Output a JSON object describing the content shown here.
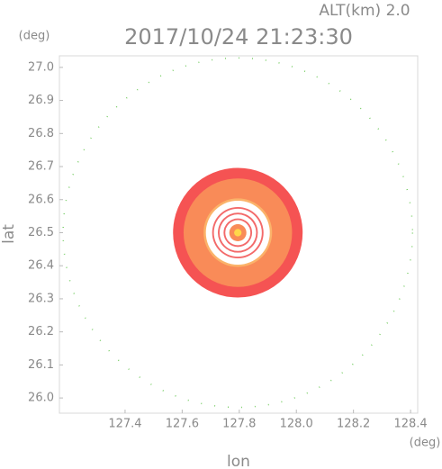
{
  "chart_data": {
    "type": "ppi",
    "title": "2017/10/24 21:23:30",
    "subtitle": "ALT(km) 2.0",
    "x_unit": "(deg)",
    "y_unit": "(deg)",
    "xlabel": "lon",
    "ylabel": "lat",
    "xlim": [
      127.17,
      128.425
    ],
    "ylim": [
      25.954,
      27.035
    ],
    "xticks": [
      127.4,
      127.6,
      127.8,
      {
        "value": 128,
        "label": "128.0"
      },
      128.2,
      128.4
    ],
    "yticks": [
      {
        "value": 26,
        "label": "26.0"
      },
      26.1,
      26.2,
      26.3,
      26.4,
      26.5,
      26.6,
      26.7,
      26.8,
      26.9,
      {
        "value": 27,
        "label": "27.0"
      }
    ],
    "center": [
      127.795,
      26.5
    ],
    "range_ring": {
      "r": 0.612,
      "color": "#7ccf6a"
    },
    "rings": [
      {
        "r": 0.227,
        "color": "#f55353"
      },
      {
        "r": 0.19,
        "color": "#f98b58"
      },
      {
        "r": 0.12,
        "color": "#fbb36a"
      },
      {
        "r": 0.112,
        "color": "#ffffff"
      },
      {
        "r": 0.09,
        "color": "#f36a6a"
      },
      {
        "r": 0.084,
        "color": "#ffffff"
      },
      {
        "r": 0.07,
        "color": "#f36a6a"
      },
      {
        "r": 0.064,
        "color": "#ffffff"
      },
      {
        "r": 0.05,
        "color": "#f36a6a"
      },
      {
        "r": 0.044,
        "color": "#ffffff"
      },
      {
        "r": 0.03,
        "color": "#f98b58"
      },
      {
        "r": 0.013,
        "color": "#ffd84a"
      }
    ]
  }
}
